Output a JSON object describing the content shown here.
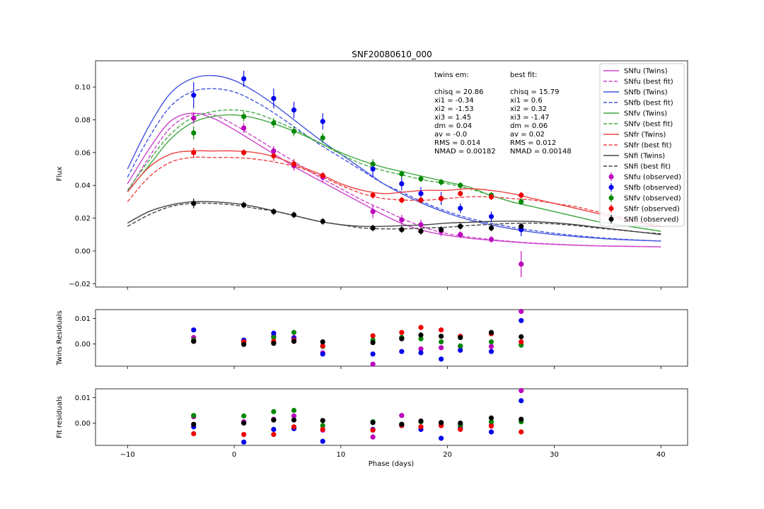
{
  "chart_data": [
    {
      "panel": "main",
      "type": "line",
      "title": "SNF20080610_000",
      "xlabel": "",
      "ylabel": "Flux",
      "xlim": [
        -13,
        42.5
      ],
      "ylim": [
        -0.022,
        0.116
      ],
      "yticks": [
        -0.02,
        0.0,
        0.02,
        0.04,
        0.06,
        0.08,
        0.1
      ],
      "ytick_labels": [
        "−0.02",
        "0.00",
        "0.02",
        "0.04",
        "0.06",
        "0.08",
        "0.10"
      ],
      "xticks": [
        -10,
        0,
        10,
        20,
        30,
        40
      ],
      "legend_position": "top-right",
      "annotations": {
        "twins": [
          "twins em:",
          "",
          "chisq = 20.86",
          "xi1 = -0.34",
          "xi2 = -1.53",
          "xi3 = 1.45",
          "dm = 0.04",
          "av = -0.0",
          "RMS = 0.014",
          "NMAD = 0.00182"
        ],
        "best": [
          "best fit:",
          "",
          "chisq = 15.79",
          "xi1 = 0.6",
          "xi2 = 0.32",
          "xi3 = -1.47",
          "dm = 0.06",
          "av = 0.02",
          "RMS = 0.012",
          "NMAD = 0.00148"
        ]
      },
      "curve_x": [
        -10,
        -8,
        -6,
        -4,
        -2,
        0,
        2,
        4,
        6,
        8,
        10,
        12,
        14,
        16,
        18,
        20,
        22,
        24,
        26,
        28,
        30,
        32,
        34,
        36,
        38,
        40
      ],
      "series": [
        {
          "name": "SNfu (Twins)",
          "kind": "line",
          "style": "solid",
          "color": "#cc44cc",
          "y": [
            0.041,
            0.062,
            0.079,
            0.084,
            0.081,
            0.074,
            0.066,
            0.058,
            0.05,
            0.043,
            0.036,
            0.029,
            0.022,
            0.016,
            0.012,
            0.0095,
            0.0078,
            0.0066,
            0.0055,
            0.0046,
            0.004,
            0.0035,
            0.0031,
            0.0029,
            0.0027,
            0.0025
          ]
        },
        {
          "name": "SNfu (best fit)",
          "kind": "line",
          "style": "dashed",
          "color": "#cc44cc",
          "y": [
            0.036,
            0.057,
            0.075,
            0.083,
            0.083,
            0.077,
            0.069,
            0.061,
            0.053,
            0.045,
            0.038,
            0.031,
            0.025,
            0.019,
            0.014,
            0.0105,
            0.0085,
            0.007,
            0.0058,
            0.0048,
            0.0042,
            0.0036,
            0.0032,
            0.0029,
            0.0027,
            0.0025
          ]
        },
        {
          "name": "SNfb (Twins)",
          "kind": "line",
          "style": "solid",
          "color": "#4455dd",
          "y": [
            0.05,
            0.076,
            0.096,
            0.105,
            0.107,
            0.104,
            0.097,
            0.088,
            0.078,
            0.068,
            0.059,
            0.05,
            0.041,
            0.034,
            0.028,
            0.023,
            0.019,
            0.016,
            0.0135,
            0.0115,
            0.01,
            0.0088,
            0.0078,
            0.007,
            0.0065,
            0.006
          ]
        },
        {
          "name": "SNfb (best fit)",
          "kind": "line",
          "style": "dashed",
          "color": "#4455dd",
          "y": [
            0.045,
            0.069,
            0.088,
            0.097,
            0.099,
            0.097,
            0.091,
            0.083,
            0.074,
            0.065,
            0.057,
            0.049,
            0.041,
            0.035,
            0.029,
            0.024,
            0.02,
            0.017,
            0.0145,
            0.0125,
            0.0108,
            0.0094,
            0.0082,
            0.0073,
            0.0066,
            0.006
          ]
        },
        {
          "name": "SNfv (Twins)",
          "kind": "line",
          "style": "solid",
          "color": "#44aa44",
          "y": [
            0.036,
            0.052,
            0.068,
            0.078,
            0.082,
            0.083,
            0.081,
            0.077,
            0.072,
            0.066,
            0.06,
            0.055,
            0.051,
            0.048,
            0.045,
            0.042,
            0.039,
            0.034,
            0.03,
            0.027,
            0.024,
            0.021,
            0.018,
            0.016,
            0.014,
            0.012
          ]
        },
        {
          "name": "SNfv (best fit)",
          "kind": "line",
          "style": "dashed",
          "color": "#44aa44",
          "y": [
            0.037,
            0.055,
            0.071,
            0.081,
            0.085,
            0.086,
            0.084,
            0.079,
            0.073,
            0.066,
            0.059,
            0.053,
            0.049,
            0.046,
            0.043,
            0.041,
            0.038,
            0.034,
            0.03,
            0.027,
            0.024,
            0.021,
            0.018,
            0.016,
            0.014,
            0.012
          ]
        },
        {
          "name": "SNfr (Twins)",
          "kind": "line",
          "style": "solid",
          "color": "#ee4444",
          "y": [
            0.036,
            0.051,
            0.059,
            0.061,
            0.061,
            0.061,
            0.06,
            0.057,
            0.052,
            0.047,
            0.041,
            0.037,
            0.035,
            0.036,
            0.037,
            0.037,
            0.038,
            0.037,
            0.035,
            0.032,
            0.029,
            0.026,
            0.023,
            0.02,
            0.017,
            0.015
          ]
        },
        {
          "name": "SNfr (best fit)",
          "kind": "line",
          "style": "dashed",
          "color": "#ee4444",
          "y": [
            0.03,
            0.045,
            0.054,
            0.057,
            0.057,
            0.057,
            0.056,
            0.054,
            0.051,
            0.046,
            0.04,
            0.035,
            0.032,
            0.031,
            0.031,
            0.032,
            0.033,
            0.033,
            0.032,
            0.031,
            0.029,
            0.027,
            0.024,
            0.021,
            0.018,
            0.015
          ]
        },
        {
          "name": "SNfi (Twins)",
          "kind": "line",
          "style": "solid",
          "color": "#444444",
          "y": [
            0.017,
            0.024,
            0.028,
            0.03,
            0.03,
            0.029,
            0.027,
            0.024,
            0.021,
            0.018,
            0.016,
            0.015,
            0.015,
            0.0155,
            0.016,
            0.017,
            0.0175,
            0.018,
            0.0182,
            0.018,
            0.0172,
            0.016,
            0.0145,
            0.013,
            0.0115,
            0.01
          ]
        },
        {
          "name": "SNfi (best fit)",
          "kind": "line",
          "style": "dashed",
          "color": "#444444",
          "y": [
            0.015,
            0.022,
            0.027,
            0.029,
            0.029,
            0.028,
            0.026,
            0.024,
            0.021,
            0.018,
            0.016,
            0.014,
            0.0135,
            0.0135,
            0.014,
            0.0145,
            0.0155,
            0.0162,
            0.0168,
            0.017,
            0.0165,
            0.0155,
            0.014,
            0.0128,
            0.0115,
            0.0105
          ]
        },
        {
          "name": "SNfu (observed)",
          "kind": "points",
          "color": "#bb00bb",
          "x": [
            -3.8,
            0.9,
            3.7,
            5.6,
            8.3,
            13.0,
            15.7,
            17.5,
            19.4,
            21.2,
            24.1,
            26.9
          ],
          "y": [
            0.081,
            0.075,
            0.061,
            0.052,
            0.045,
            0.024,
            0.019,
            0.016,
            0.012,
            0.01,
            0.007,
            -0.008
          ],
          "err": [
            0.0035,
            0.003,
            0.003,
            0.003,
            0.003,
            0.004,
            0.003,
            0.003,
            0.003,
            0.002,
            0.002,
            0.008
          ]
        },
        {
          "name": "SNfb (observed)",
          "kind": "points",
          "color": "#0000ee",
          "x": [
            -3.8,
            0.9,
            3.7,
            5.6,
            8.3,
            13.0,
            15.7,
            17.5,
            19.4,
            21.2,
            24.1,
            26.9
          ],
          "y": [
            0.095,
            0.105,
            0.093,
            0.086,
            0.079,
            0.05,
            0.041,
            0.035,
            0.032,
            0.026,
            0.021,
            0.013
          ],
          "err": [
            0.008,
            0.005,
            0.006,
            0.005,
            0.005,
            0.005,
            0.004,
            0.004,
            0.004,
            0.003,
            0.003,
            0.004
          ]
        },
        {
          "name": "SNfv (observed)",
          "kind": "points",
          "color": "#008800",
          "x": [
            -3.8,
            0.9,
            3.7,
            5.6,
            8.3,
            13.0,
            15.7,
            17.5,
            19.4,
            21.2,
            24.1,
            26.9
          ],
          "y": [
            0.072,
            0.082,
            0.078,
            0.073,
            0.069,
            0.053,
            0.047,
            0.044,
            0.042,
            0.04,
            0.034,
            0.03
          ],
          "err": [
            0.004,
            0.003,
            0.003,
            0.003,
            0.003,
            0.003,
            0.002,
            0.002,
            0.002,
            0.002,
            0.002,
            0.002
          ]
        },
        {
          "name": "SNfr (observed)",
          "kind": "points",
          "color": "#ee0000",
          "x": [
            -3.8,
            0.9,
            3.7,
            5.6,
            8.3,
            13.0,
            15.7,
            17.5,
            19.4,
            21.2,
            24.1,
            26.9
          ],
          "y": [
            0.06,
            0.06,
            0.058,
            0.053,
            0.046,
            0.034,
            0.031,
            0.031,
            0.032,
            0.035,
            0.033,
            0.034
          ],
          "err": [
            0.003,
            0.002,
            0.003,
            0.003,
            0.002,
            0.002,
            0.002,
            0.002,
            0.002,
            0.002,
            0.002,
            0.002
          ]
        },
        {
          "name": "SNfi (observed)",
          "kind": "points",
          "color": "#000000",
          "x": [
            -3.8,
            0.9,
            3.7,
            5.6,
            8.3,
            13.0,
            15.7,
            17.5,
            19.4,
            21.2,
            24.1,
            26.9
          ],
          "y": [
            0.029,
            0.028,
            0.024,
            0.022,
            0.018,
            0.014,
            0.013,
            0.012,
            0.013,
            0.015,
            0.014,
            0.015
          ],
          "err": [
            0.003,
            0.002,
            0.002,
            0.002,
            0.002,
            0.002,
            0.002,
            0.002,
            0.002,
            0.002,
            0.002,
            0.002
          ]
        }
      ]
    },
    {
      "panel": "twins_residuals",
      "type": "scatter",
      "ylabel": "Twins Residuals",
      "xlim": [
        -13,
        42.5
      ],
      "ylim": [
        -0.0088,
        0.0135
      ],
      "yticks": [
        0.0,
        0.01
      ],
      "ytick_labels": [
        "0.00",
        "0.01"
      ],
      "xticks": [
        -10,
        0,
        10,
        20,
        30,
        40
      ],
      "x": [
        -3.8,
        0.9,
        3.7,
        5.6,
        8.3,
        13.0,
        15.7,
        17.5,
        19.4,
        21.2,
        24.1,
        26.9
      ],
      "series": [
        {
          "name": "SNfu",
          "color": "#bb00bb",
          "values": [
            0.0025,
            0.001,
            0.003,
            0.0025,
            -0.0035,
            -0.008,
            0.0025,
            -0.002,
            -0.0015,
            -0.001,
            -0.001,
            0.0128
          ]
        },
        {
          "name": "SNfb",
          "color": "#0000ee",
          "values": [
            0.0055,
            0.0015,
            0.0042,
            0.0022,
            -0.004,
            -0.004,
            -0.003,
            -0.0035,
            -0.006,
            -0.0025,
            -0.003,
            0.0092
          ]
        },
        {
          "name": "SNfv",
          "color": "#008800",
          "values": [
            0.0015,
            0.0005,
            0.0025,
            0.0045,
            -0.001,
            0.0015,
            0.0025,
            0.002,
            0.0008,
            -0.0008,
            0.0008,
            -0.0005
          ]
        },
        {
          "name": "SNfr",
          "color": "#ee0000",
          "values": [
            0.001,
            0.0008,
            0.001,
            0.0015,
            -0.0008,
            0.0032,
            0.0045,
            0.0065,
            0.0055,
            0.003,
            0.004,
            0.0008
          ]
        },
        {
          "name": "SNfi",
          "color": "#000000",
          "values": [
            0.001,
            -0.0002,
            0.0002,
            0.001,
            0.0008,
            0.0005,
            0.002,
            0.0035,
            0.003,
            0.0025,
            0.0045,
            0.0028
          ]
        }
      ]
    },
    {
      "panel": "fit_residuals",
      "type": "scatter",
      "ylabel": "Fit residuals",
      "xlabel": "Phase (days)",
      "xlim": [
        -13,
        42.5
      ],
      "ylim": [
        -0.0088,
        0.0135
      ],
      "yticks": [
        0.0,
        0.01
      ],
      "ytick_labels": [
        "0.00",
        "0.01"
      ],
      "xticks": [
        -10,
        0,
        10,
        20,
        30,
        40
      ],
      "xtick_labels": [
        "−10",
        "0",
        "10",
        "20",
        "30",
        "40"
      ],
      "x": [
        -3.8,
        0.9,
        3.7,
        5.6,
        8.3,
        13.0,
        15.7,
        17.5,
        19.4,
        21.2,
        24.1,
        26.9
      ],
      "series": [
        {
          "name": "SNfu",
          "color": "#bb00bb",
          "values": [
            0.0025,
            0.0005,
            0.0015,
            0.0028,
            -0.0028,
            -0.0055,
            0.003,
            -0.0015,
            -0.001,
            -0.0012,
            -0.0008,
            0.0128
          ]
        },
        {
          "name": "SNfb",
          "color": "#0000ee",
          "values": [
            -0.0015,
            -0.0075,
            -0.0025,
            -0.0022,
            -0.0072,
            -0.0025,
            -0.001,
            -0.0025,
            -0.006,
            -0.002,
            -0.0035,
            0.0088
          ]
        },
        {
          "name": "SNfv",
          "color": "#008800",
          "values": [
            0.003,
            0.0028,
            0.0045,
            0.005,
            -0.001,
            0.0005,
            -0.0005,
            0.0005,
            -0.0005,
            -0.0008,
            0.0005,
            0.0005
          ]
        },
        {
          "name": "SNfr",
          "color": "#ee0000",
          "values": [
            -0.0042,
            -0.0045,
            -0.0045,
            -0.0015,
            -0.0025,
            -0.0028,
            -0.001,
            -0.0015,
            -0.001,
            -0.0025,
            -0.0012,
            -0.0035
          ]
        },
        {
          "name": "SNfi",
          "color": "#000000",
          "values": [
            -0.0005,
            0.0,
            0.0012,
            0.0012,
            0.001,
            0.0002,
            -0.0005,
            0.0008,
            0.0002,
            0.0,
            0.002,
            0.0015
          ]
        }
      ]
    }
  ]
}
